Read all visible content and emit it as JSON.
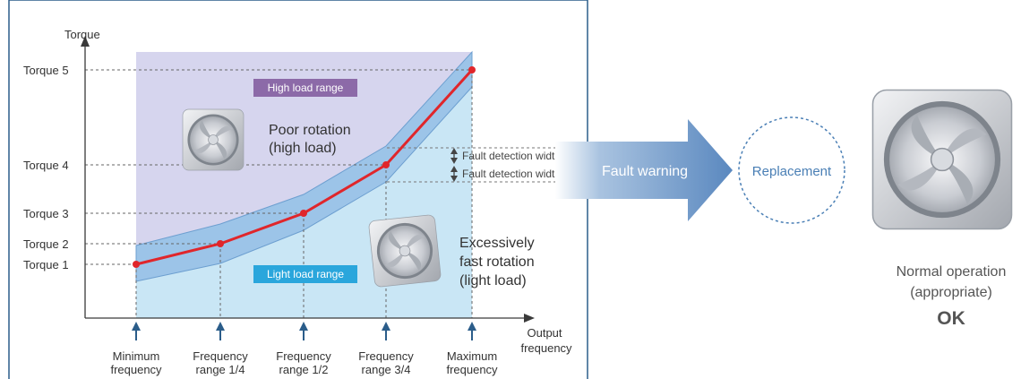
{
  "chart_data": {
    "type": "line",
    "ylabel": "Torque",
    "xlabel": "Output frequency",
    "y_ticks": [
      "Torque 1",
      "Torque 2",
      "Torque 3",
      "Torque 4",
      "Torque 5"
    ],
    "x_ticks": [
      [
        "Minimum",
        "frequency"
      ],
      [
        "Frequency",
        "range 1/4"
      ],
      [
        "Frequency",
        "range 1/2"
      ],
      [
        "Frequency",
        "range 3/4"
      ],
      [
        "Maximum",
        "frequency"
      ]
    ],
    "points": [
      {
        "x": "Minimum frequency",
        "y": "Torque 1"
      },
      {
        "x": "Frequency range 1/4",
        "y": "Torque 2"
      },
      {
        "x": "Frequency range 1/2",
        "y": "Torque 3"
      },
      {
        "x": "Frequency range 3/4",
        "y": "Torque 4"
      },
      {
        "x": "Maximum frequency",
        "y": "Torque 5"
      }
    ],
    "regions": {
      "high": "High load range",
      "light": "Light load range"
    },
    "annotations": {
      "poor_line1": "Poor rotation",
      "poor_line2": "(high load)",
      "fast_line1": "Excessively",
      "fast_line2": "fast rotation",
      "fast_line3": "(light load)",
      "fault_width_upper": "Fault detection width",
      "fault_width_lower": "Fault detection width"
    },
    "colors": {
      "line": "#e0262b",
      "band": "#9cc4e8",
      "high_region": "#d6d5ee",
      "light_region": "#c9e6f5",
      "high_badge": "#8c6aa8",
      "light_badge": "#2aa6dc"
    }
  },
  "flow": {
    "arrow_label": "Fault warning",
    "replacement_label": "Replacement",
    "result_line1": "Normal operation",
    "result_line2": "(appropriate)",
    "result_ok": "OK"
  },
  "icons": {
    "fan_high": "fan-icon",
    "fan_light": "fan-icon",
    "fan_ok": "fan-icon"
  }
}
